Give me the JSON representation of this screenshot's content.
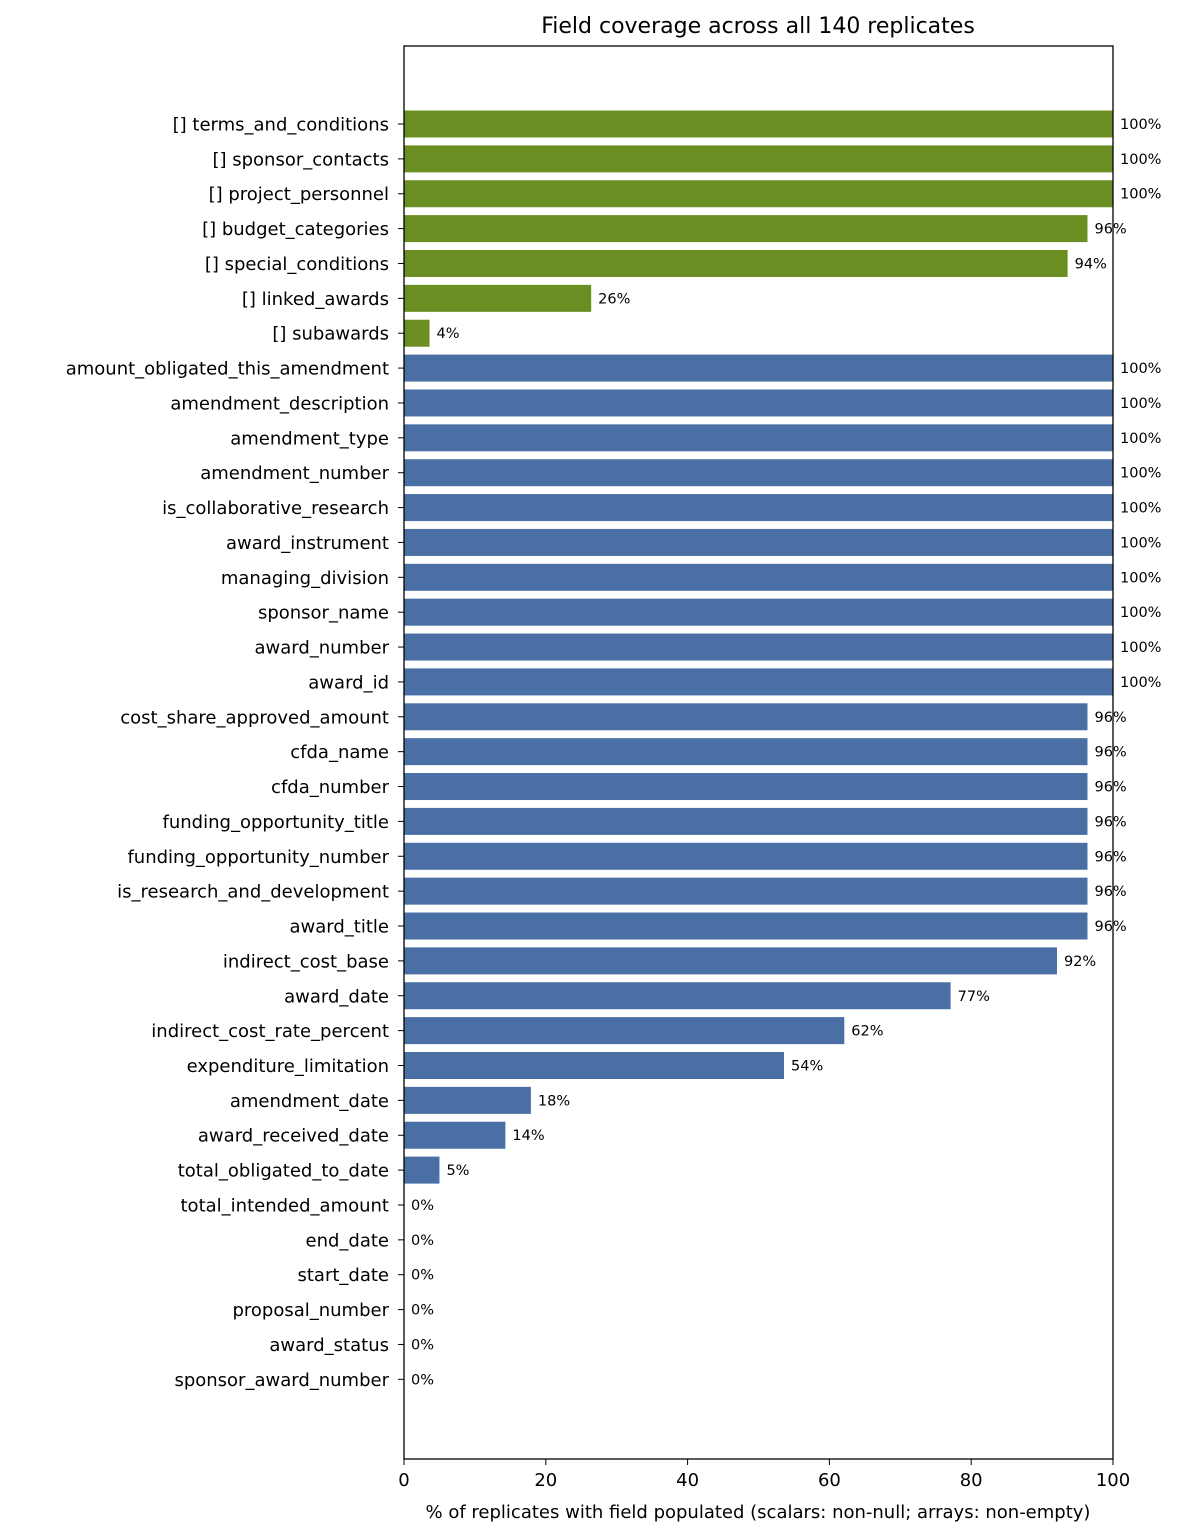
{
  "chart_data": {
    "type": "bar",
    "orientation": "horizontal",
    "title": "Field coverage across all 140 replicates",
    "xlabel": "% of replicates with field populated (scalars: non-null;  arrays: non-empty)",
    "ylabel": "",
    "xlim": [
      0,
      100
    ],
    "xticks": [
      0,
      20,
      40,
      60,
      80,
      100
    ],
    "grid": false,
    "colors": {
      "array": "#6b8e23",
      "scalar": "#4a6fa5"
    },
    "bars": [
      {
        "label": "[] terms_and_conditions",
        "value": 100,
        "value_label": "100%",
        "kind": "array"
      },
      {
        "label": "[] sponsor_contacts",
        "value": 100,
        "value_label": "100%",
        "kind": "array"
      },
      {
        "label": "[] project_personnel",
        "value": 100,
        "value_label": "100%",
        "kind": "array"
      },
      {
        "label": "[] budget_categories",
        "value": 96.4,
        "value_label": "96%",
        "kind": "array"
      },
      {
        "label": "[] special_conditions",
        "value": 93.6,
        "value_label": "94%",
        "kind": "array"
      },
      {
        "label": "[] linked_awards",
        "value": 26.4,
        "value_label": "26%",
        "kind": "array"
      },
      {
        "label": "[] subawards",
        "value": 3.6,
        "value_label": "4%",
        "kind": "array"
      },
      {
        "label": "amount_obligated_this_amendment",
        "value": 100,
        "value_label": "100%",
        "kind": "scalar"
      },
      {
        "label": "amendment_description",
        "value": 100,
        "value_label": "100%",
        "kind": "scalar"
      },
      {
        "label": "amendment_type",
        "value": 100,
        "value_label": "100%",
        "kind": "scalar"
      },
      {
        "label": "amendment_number",
        "value": 100,
        "value_label": "100%",
        "kind": "scalar"
      },
      {
        "label": "is_collaborative_research",
        "value": 100,
        "value_label": "100%",
        "kind": "scalar"
      },
      {
        "label": "award_instrument",
        "value": 100,
        "value_label": "100%",
        "kind": "scalar"
      },
      {
        "label": "managing_division",
        "value": 100,
        "value_label": "100%",
        "kind": "scalar"
      },
      {
        "label": "sponsor_name",
        "value": 100,
        "value_label": "100%",
        "kind": "scalar"
      },
      {
        "label": "award_number",
        "value": 100,
        "value_label": "100%",
        "kind": "scalar"
      },
      {
        "label": "award_id",
        "value": 100,
        "value_label": "100%",
        "kind": "scalar"
      },
      {
        "label": "cost_share_approved_amount",
        "value": 96.4,
        "value_label": "96%",
        "kind": "scalar"
      },
      {
        "label": "cfda_name",
        "value": 96.4,
        "value_label": "96%",
        "kind": "scalar"
      },
      {
        "label": "cfda_number",
        "value": 96.4,
        "value_label": "96%",
        "kind": "scalar"
      },
      {
        "label": "funding_opportunity_title",
        "value": 96.4,
        "value_label": "96%",
        "kind": "scalar"
      },
      {
        "label": "funding_opportunity_number",
        "value": 96.4,
        "value_label": "96%",
        "kind": "scalar"
      },
      {
        "label": "is_research_and_development",
        "value": 96.4,
        "value_label": "96%",
        "kind": "scalar"
      },
      {
        "label": "award_title",
        "value": 96.4,
        "value_label": "96%",
        "kind": "scalar"
      },
      {
        "label": "indirect_cost_base",
        "value": 92.1,
        "value_label": "92%",
        "kind": "scalar"
      },
      {
        "label": "award_date",
        "value": 77.1,
        "value_label": "77%",
        "kind": "scalar"
      },
      {
        "label": "indirect_cost_rate_percent",
        "value": 62.1,
        "value_label": "62%",
        "kind": "scalar"
      },
      {
        "label": "expenditure_limitation",
        "value": 53.6,
        "value_label": "54%",
        "kind": "scalar"
      },
      {
        "label": "amendment_date",
        "value": 17.9,
        "value_label": "18%",
        "kind": "scalar"
      },
      {
        "label": "award_received_date",
        "value": 14.3,
        "value_label": "14%",
        "kind": "scalar"
      },
      {
        "label": "total_obligated_to_date",
        "value": 5.0,
        "value_label": "5%",
        "kind": "scalar"
      },
      {
        "label": "total_intended_amount",
        "value": 0,
        "value_label": "0%",
        "kind": "scalar"
      },
      {
        "label": "end_date",
        "value": 0,
        "value_label": "0%",
        "kind": "scalar"
      },
      {
        "label": "start_date",
        "value": 0,
        "value_label": "0%",
        "kind": "scalar"
      },
      {
        "label": "proposal_number",
        "value": 0,
        "value_label": "0%",
        "kind": "scalar"
      },
      {
        "label": "award_status",
        "value": 0,
        "value_label": "0%",
        "kind": "scalar"
      },
      {
        "label": "sponsor_award_number",
        "value": 0,
        "value_label": "0%",
        "kind": "scalar"
      }
    ]
  }
}
